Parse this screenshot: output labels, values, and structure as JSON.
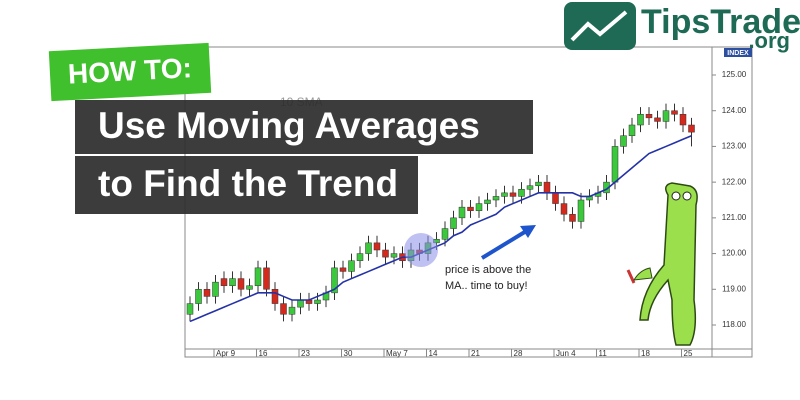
{
  "logo": {
    "name": "TipsTrade",
    "suffix": ".org"
  },
  "badge": "HOW TO:",
  "headline": [
    "Use Moving Averages",
    "to Find the Trend"
  ],
  "chart_data": {
    "type": "candlestick",
    "axis_label": "INDEX",
    "annotation": [
      "price is above the",
      "MA.. time to buy!"
    ],
    "categories": [
      null,
      null,
      null,
      null,
      "Apr 9",
      null,
      null,
      null,
      null,
      "16",
      null,
      null,
      null,
      null,
      "23",
      null,
      null,
      null,
      null,
      "30",
      null,
      null,
      null,
      null,
      "May 7",
      null,
      null,
      null,
      null,
      "14",
      null,
      null,
      null,
      null,
      "21",
      null,
      null,
      null,
      null,
      "28",
      null,
      null,
      null,
      null,
      "Jun 4",
      null,
      null,
      null,
      null,
      "11",
      null,
      null,
      null,
      null,
      "18",
      null,
      null,
      null,
      null,
      "25"
    ],
    "open": [
      118.3,
      118.6,
      119.0,
      118.8,
      119.3,
      119.1,
      119.3,
      119.0,
      119.1,
      119.6,
      119.0,
      118.6,
      118.3,
      118.5,
      118.7,
      118.6,
      118.7,
      118.9,
      119.6,
      119.5,
      119.8,
      120.0,
      120.3,
      120.1,
      119.9,
      120.0,
      119.8,
      120.1,
      120.0,
      120.3,
      120.4,
      120.7,
      121.0,
      121.3,
      121.2,
      121.4,
      121.5,
      121.6,
      121.7,
      121.6,
      121.8,
      121.9,
      122.0,
      121.7,
      121.4,
      121.1,
      120.9,
      121.5,
      121.6,
      121.7,
      122.0,
      123.0,
      123.3,
      123.6,
      123.9,
      123.8,
      123.7,
      124.0,
      123.9,
      123.6
    ],
    "high": [
      118.8,
      119.2,
      119.2,
      119.4,
      119.5,
      119.5,
      119.5,
      119.3,
      119.8,
      119.8,
      119.2,
      118.8,
      118.7,
      118.9,
      118.9,
      118.9,
      119.1,
      119.8,
      119.8,
      120.0,
      120.2,
      120.5,
      120.5,
      120.3,
      120.2,
      120.2,
      120.3,
      120.3,
      120.5,
      120.6,
      120.9,
      121.2,
      121.5,
      121.5,
      121.6,
      121.7,
      121.8,
      121.9,
      121.9,
      122.0,
      122.1,
      122.2,
      122.2,
      121.9,
      121.6,
      121.3,
      121.7,
      121.8,
      121.9,
      122.2,
      123.2,
      123.5,
      123.8,
      124.1,
      124.1,
      124.0,
      124.2,
      124.2,
      124.1,
      123.8
    ],
    "low": [
      118.1,
      118.4,
      118.6,
      118.6,
      118.9,
      118.9,
      118.8,
      118.8,
      118.9,
      118.8,
      118.4,
      118.1,
      118.1,
      118.3,
      118.4,
      118.4,
      118.5,
      118.7,
      119.3,
      119.3,
      119.6,
      119.8,
      119.9,
      119.7,
      119.7,
      119.6,
      119.6,
      119.8,
      119.8,
      120.1,
      120.2,
      120.5,
      120.8,
      121.0,
      121.0,
      121.2,
      121.3,
      121.4,
      121.4,
      121.4,
      121.6,
      121.7,
      121.5,
      121.2,
      120.9,
      120.7,
      120.7,
      121.3,
      121.4,
      121.5,
      121.8,
      122.8,
      123.1,
      123.4,
      123.6,
      123.5,
      123.5,
      123.7,
      123.4,
      123.0
    ],
    "close": [
      118.6,
      119.0,
      118.8,
      119.2,
      119.1,
      119.3,
      119.0,
      119.1,
      119.6,
      119.0,
      118.6,
      118.3,
      118.5,
      118.7,
      118.6,
      118.7,
      118.9,
      119.6,
      119.5,
      119.8,
      120.0,
      120.3,
      120.1,
      119.9,
      120.0,
      119.8,
      120.1,
      120.0,
      120.3,
      120.4,
      120.7,
      121.0,
      121.3,
      121.2,
      121.4,
      121.5,
      121.6,
      121.7,
      121.6,
      121.8,
      121.9,
      122.0,
      121.7,
      121.4,
      121.1,
      120.9,
      121.5,
      121.6,
      121.7,
      122.0,
      123.0,
      123.3,
      123.6,
      123.9,
      123.8,
      123.7,
      124.0,
      123.9,
      123.6,
      123.4
    ],
    "up_color": "#3cc83c",
    "down_color": "#d42a1e",
    "sma": {
      "name": "10 SMA",
      "color": "#2432a8",
      "values": [
        118.1,
        118.2,
        118.3,
        118.4,
        118.5,
        118.6,
        118.7,
        118.8,
        118.9,
        118.9,
        118.9,
        118.8,
        118.7,
        118.7,
        118.7,
        118.8,
        118.9,
        119.0,
        119.2,
        119.3,
        119.4,
        119.5,
        119.6,
        119.7,
        119.8,
        119.9,
        119.9,
        120.0,
        120.1,
        120.2,
        120.3,
        120.5,
        120.6,
        120.8,
        120.9,
        121.0,
        121.1,
        121.3,
        121.4,
        121.5,
        121.6,
        121.7,
        121.7,
        121.7,
        121.7,
        121.7,
        121.6,
        121.6,
        121.7,
        121.8,
        122.0,
        122.2,
        122.4,
        122.6,
        122.8,
        122.9,
        123.0,
        123.1,
        123.2,
        123.3
      ]
    },
    "ylim": [
      117.3,
      125.84
    ],
    "yticks": [
      {
        "value": 118,
        "label": "118.00"
      },
      {
        "value": 119,
        "label": "119.00"
      },
      {
        "value": 120,
        "label": "120.00"
      },
      {
        "value": 121,
        "label": "121.00"
      },
      {
        "value": 122,
        "label": "122.00"
      },
      {
        "value": 123,
        "label": "123.00"
      },
      {
        "value": 124,
        "label": "124.00"
      },
      {
        "value": 125,
        "label": "125.00"
      }
    ]
  }
}
